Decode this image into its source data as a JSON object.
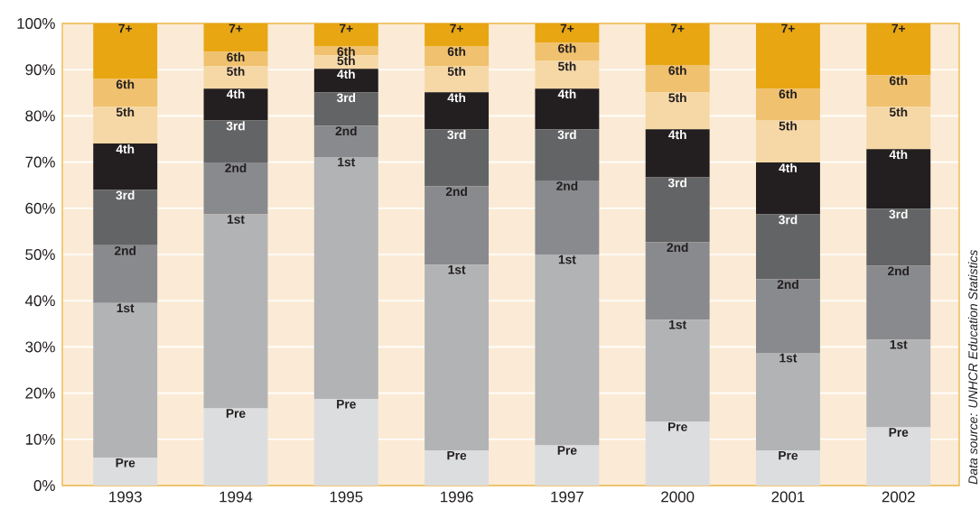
{
  "chart_data": {
    "type": "bar",
    "stacked": true,
    "categories": [
      "1993",
      "1994",
      "1995",
      "1996",
      "1997",
      "2000",
      "2001",
      "2002"
    ],
    "series": [
      {
        "name": "Pre",
        "color": "#dcdddf",
        "values": [
          6,
          16.7,
          18.7,
          7.6,
          8.7,
          13.8,
          7.6,
          12.6
        ]
      },
      {
        "name": "1st",
        "color": "#b2b3b5",
        "values": [
          33.5,
          42,
          52.4,
          40.2,
          41.3,
          22.1,
          21.1,
          19
        ]
      },
      {
        "name": "2nd",
        "color": "#898a8e",
        "values": [
          12.5,
          11.2,
          6.8,
          17,
          16,
          16.8,
          16,
          16
        ]
      },
      {
        "name": "3rd",
        "color": "#636466",
        "values": [
          12,
          9.1,
          7.2,
          12.3,
          11.1,
          14,
          14,
          12.3
        ]
      },
      {
        "name": "4th",
        "color": "#231f20",
        "values": [
          10,
          6.9,
          5.1,
          8,
          8.8,
          10.4,
          11.2,
          12.9
        ]
      },
      {
        "name": "5th",
        "color": "#f6d8a6",
        "values": [
          8,
          4.9,
          2.9,
          5.7,
          6,
          8,
          9.1,
          9.2
        ]
      },
      {
        "name": "6th",
        "color": "#f0c16e",
        "values": [
          6,
          3.1,
          2,
          4.3,
          3.9,
          5.9,
          6.9,
          6.8
        ]
      },
      {
        "name": "7+",
        "color": "#e8a613",
        "values": [
          12,
          6.1,
          4.9,
          4.9,
          4.2,
          9,
          14.1,
          11.2
        ]
      }
    ],
    "ylim": [
      0,
      100
    ],
    "yticks": [
      {
        "value": 0,
        "label": "0%"
      },
      {
        "value": 10,
        "label": "10%"
      },
      {
        "value": 20,
        "label": "20%"
      },
      {
        "value": 30,
        "label": "30%"
      },
      {
        "value": 40,
        "label": "40%"
      },
      {
        "value": 50,
        "label": "50%"
      },
      {
        "value": 60,
        "label": "60%"
      },
      {
        "value": 70,
        "label": "70%"
      },
      {
        "value": 80,
        "label": "80%"
      },
      {
        "value": 90,
        "label": "90%"
      },
      {
        "value": 100,
        "label": "100%"
      }
    ],
    "grid": "y",
    "annotations": [
      "Data source: UNHCR Education Statistics"
    ]
  }
}
